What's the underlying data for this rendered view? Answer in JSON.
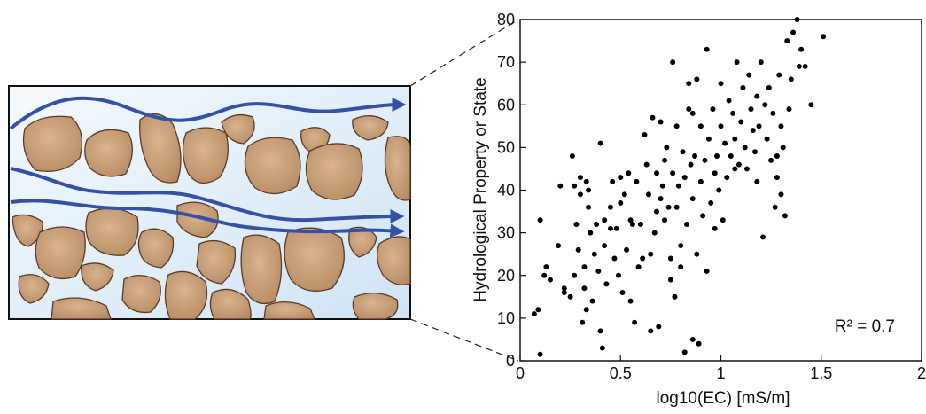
{
  "chart_data": {
    "type": "scatter",
    "xlabel": "log10(EC) [mS/m]",
    "ylabel": "Hydrological Property or State",
    "annotation": "R² = 0.7",
    "color": "#000000",
    "xlim": [
      0,
      2
    ],
    "xticks": [
      0,
      0.5,
      1,
      1.5,
      2
    ],
    "ylim": [
      0,
      80
    ],
    "yticks": [
      0,
      10,
      20,
      30,
      40,
      50,
      60,
      70,
      80
    ],
    "x": [
      0.07,
      0.1,
      0.09,
      0.1,
      0.12,
      0.13,
      0.19,
      0.2,
      0.22,
      0.22,
      0.25,
      0.26,
      0.27,
      0.27,
      0.28,
      0.29,
      0.3,
      0.3,
      0.31,
      0.32,
      0.32,
      0.33,
      0.33,
      0.34,
      0.34,
      0.35,
      0.36,
      0.37,
      0.38,
      0.39,
      0.4,
      0.4,
      0.41,
      0.42,
      0.42,
      0.43,
      0.45,
      0.46,
      0.47,
      0.48,
      0.49,
      0.5,
      0.5,
      0.51,
      0.52,
      0.53,
      0.54,
      0.55,
      0.56,
      0.57,
      0.58,
      0.59,
      0.6,
      0.61,
      0.62,
      0.63,
      0.64,
      0.65,
      0.65,
      0.66,
      0.67,
      0.68,
      0.69,
      0.7,
      0.7,
      0.71,
      0.72,
      0.72,
      0.73,
      0.74,
      0.75,
      0.75,
      0.76,
      0.76,
      0.77,
      0.78,
      0.78,
      0.79,
      0.8,
      0.8,
      0.81,
      0.82,
      0.82,
      0.83,
      0.84,
      0.84,
      0.85,
      0.86,
      0.86,
      0.87,
      0.88,
      0.88,
      0.89,
      0.9,
      0.9,
      0.91,
      0.92,
      0.93,
      0.93,
      0.94,
      0.95,
      0.96,
      0.97,
      0.98,
      0.99,
      1.0,
      1.0,
      1.01,
      1.02,
      1.03,
      1.04,
      1.05,
      1.06,
      1.07,
      1.08,
      1.09,
      1.1,
      1.11,
      1.12,
      1.13,
      1.14,
      1.15,
      1.16,
      1.17,
      1.18,
      1.19,
      1.2,
      1.21,
      1.22,
      1.23,
      1.24,
      1.25,
      1.26,
      1.27,
      1.28,
      1.29,
      1.3,
      1.31,
      1.32,
      1.33,
      1.34,
      1.35,
      1.36,
      1.38,
      1.39,
      1.4,
      1.42,
      1.45,
      1.51,
      1.3,
      1.28,
      1.18,
      1.07,
      0.97,
      0.86,
      0.68,
      0.55,
      0.45,
      0.15
    ],
    "y": [
      11,
      1.5,
      12,
      33,
      20,
      22,
      27,
      41,
      17,
      16,
      15,
      48,
      20,
      41,
      32,
      26,
      39,
      43,
      9,
      22,
      17,
      42,
      12,
      40,
      36,
      30,
      14,
      25,
      32,
      21,
      51,
      7,
      3,
      33,
      27,
      18,
      36,
      42,
      24,
      31,
      20,
      43,
      37,
      16,
      39,
      26,
      44,
      14,
      32,
      9,
      42,
      22,
      32,
      24,
      53,
      46,
      39,
      7,
      25,
      57,
      30,
      44,
      8,
      56,
      38,
      41,
      47,
      33,
      50,
      36,
      24,
      19,
      70,
      44,
      15,
      55,
      36,
      41,
      22,
      27,
      49,
      2,
      43,
      32,
      65,
      59,
      46,
      5,
      38,
      48,
      25,
      66,
      4,
      55,
      42,
      34,
      47,
      21,
      73,
      52,
      37,
      59,
      44,
      48,
      40,
      65,
      55,
      33,
      51,
      43,
      61,
      48,
      58,
      52,
      70,
      46,
      56,
      64,
      50,
      45,
      67,
      59,
      54,
      49,
      42,
      55,
      70,
      29,
      60,
      52,
      64,
      47,
      58,
      36,
      43,
      67,
      55,
      50,
      34,
      75,
      59,
      66,
      77,
      80,
      69,
      73,
      69,
      60,
      76,
      39,
      48,
      62,
      45,
      31,
      58,
      35,
      33,
      31,
      19
    ]
  }
}
